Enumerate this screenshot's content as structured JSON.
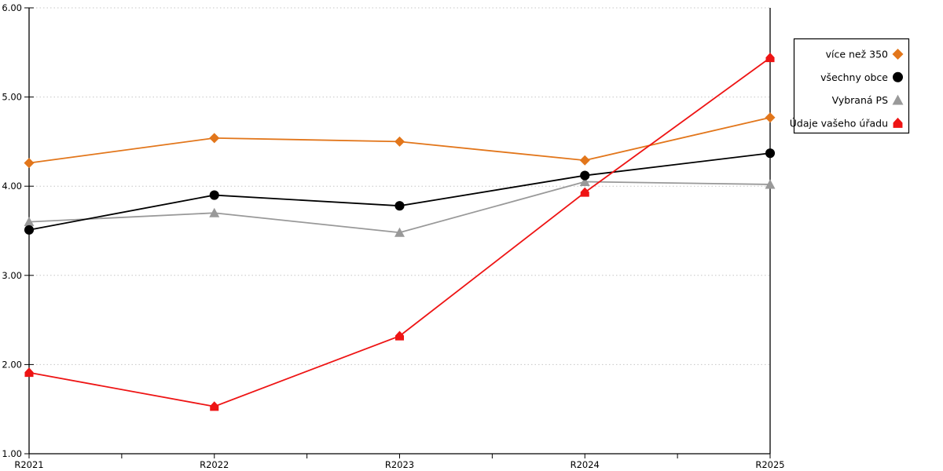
{
  "window": {
    "background": "#FFFFFF"
  },
  "chart_data": {
    "type": "line",
    "title": "",
    "xlabel": "",
    "ylabel": "",
    "categories": [
      "R2021",
      "R2022",
      "R2023",
      "R2024",
      "R2025"
    ],
    "ylim": [
      1,
      6
    ],
    "ytick_step": 1,
    "ytick_labels": [
      "1.00",
      "2.00",
      "3.00",
      "4.00",
      "5.00",
      "6.00"
    ],
    "grid": "horizontal dotted gridlines at each 1.00, minor x ticks at category midpoints",
    "gridline_color": "#C6C6C6",
    "axis_color": "#000000",
    "legend_position": "top-right outside plot, white box with black border",
    "series": [
      {
        "id": "vice-nez-350",
        "name": "více než 350",
        "color": "#E2761B",
        "marker": "diamond",
        "z": 1,
        "values": [
          4.26,
          4.54,
          4.5,
          4.29,
          4.77
        ]
      },
      {
        "id": "vsechny-obce",
        "name": "všechny obce",
        "color": "#000000",
        "marker": "circle",
        "z": 3,
        "values": [
          3.51,
          3.9,
          3.78,
          4.12,
          4.37
        ]
      },
      {
        "id": "vybrana-ps",
        "name": "Vybraná PS",
        "color": "#999999",
        "marker": "triangle-up",
        "z": 2,
        "values": [
          3.6,
          3.7,
          3.48,
          4.05,
          4.02
        ]
      },
      {
        "id": "udaje-vaseho-uradu",
        "name": "Údaje vašeho úřadu",
        "color": "#EE1414",
        "marker": "house-pentagon",
        "z": 4,
        "values": [
          1.91,
          1.53,
          2.32,
          3.93,
          5.44
        ]
      }
    ]
  }
}
